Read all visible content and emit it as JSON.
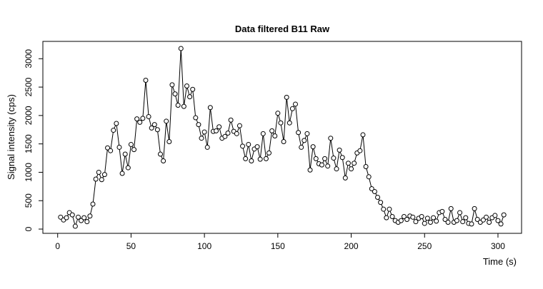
{
  "chart_data": {
    "type": "line",
    "title": "Data filtered B11 Raw",
    "x_label": "Time (s)",
    "y_label": "Signal intensity (cps)",
    "x": [
      2,
      4,
      6,
      8,
      10,
      12,
      14,
      16,
      18,
      20,
      22,
      24,
      26,
      28,
      30,
      32,
      34,
      36,
      38,
      40,
      42,
      44,
      46,
      48,
      50,
      52,
      54,
      56,
      58,
      60,
      62,
      64,
      66,
      68,
      70,
      72,
      74,
      76,
      78,
      80,
      82,
      84,
      86,
      88,
      90,
      92,
      94,
      96,
      98,
      100,
      102,
      104,
      106,
      108,
      110,
      112,
      114,
      116,
      118,
      120,
      122,
      124,
      126,
      128,
      130,
      132,
      134,
      136,
      138,
      140,
      142,
      144,
      146,
      148,
      150,
      152,
      154,
      156,
      158,
      160,
      162,
      164,
      166,
      168,
      170,
      172,
      174,
      176,
      178,
      180,
      182,
      184,
      186,
      188,
      190,
      192,
      194,
      196,
      198,
      200,
      202,
      204,
      206,
      208,
      210,
      212,
      214,
      216,
      218,
      220,
      222,
      224,
      226,
      228,
      230,
      232,
      234,
      236,
      238,
      240,
      242,
      244,
      246,
      248,
      250,
      252,
      254,
      256,
      258,
      260,
      262,
      264,
      266,
      268,
      270,
      272,
      274,
      276,
      278,
      280,
      282,
      284,
      286,
      288,
      290,
      292,
      294,
      296,
      298,
      300,
      302,
      304
    ],
    "series": [
      {
        "color": "#000000",
        "values": [
          210,
          160,
          200,
          290,
          250,
          50,
          210,
          150,
          200,
          130,
          230,
          440,
          880,
          1000,
          870,
          960,
          1430,
          1380,
          1740,
          1860,
          1440,
          980,
          1320,
          1080,
          1490,
          1400,
          1940,
          1880,
          1950,
          2620,
          1980,
          1780,
          1840,
          1750,
          1320,
          1200,
          1900,
          1540,
          2540,
          2380,
          2180,
          3180,
          2160,
          2520,
          2330,
          2460,
          1960,
          1840,
          1600,
          1710,
          1440,
          2140,
          1720,
          1730,
          1800,
          1600,
          1630,
          1690,
          1920,
          1720,
          1680,
          1820,
          1460,
          1240,
          1490,
          1200,
          1410,
          1450,
          1230,
          1680,
          1240,
          1340,
          1730,
          1640,
          2040,
          1870,
          1540,
          2320,
          1870,
          2120,
          2200,
          1700,
          1440,
          1560,
          1680,
          1040,
          1450,
          1240,
          1150,
          1130,
          1240,
          1110,
          1600,
          1250,
          1060,
          1390,
          1260,
          900,
          1160,
          1060,
          1160,
          1340,
          1380,
          1660,
          1100,
          920,
          710,
          660,
          560,
          470,
          350,
          200,
          350,
          220,
          150,
          120,
          150,
          220,
          170,
          230,
          210,
          130,
          190,
          220,
          100,
          190,
          120,
          200,
          140,
          290,
          310,
          170,
          120,
          360,
          120,
          150,
          290,
          130,
          200,
          100,
          90,
          360,
          170,
          120,
          160,
          210,
          120,
          200,
          240,
          150,
          90,
          250
        ]
      }
    ],
    "xlim": [
      -10.08,
      316.08
    ],
    "ylim": [
      -75,
      3305
    ],
    "xticks": [
      0,
      50,
      100,
      150,
      200,
      250,
      300
    ],
    "yticks": [
      0,
      500,
      1000,
      1500,
      2000,
      2500,
      3000
    ]
  }
}
